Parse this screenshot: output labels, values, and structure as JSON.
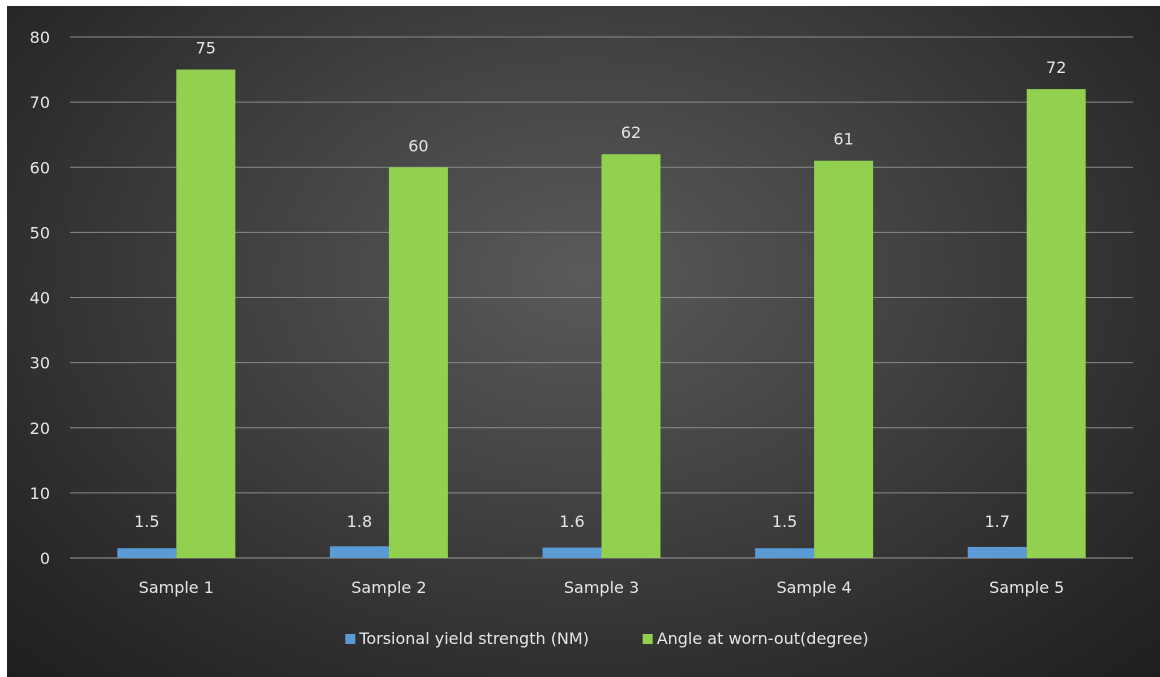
{
  "chart_data": {
    "type": "bar",
    "title": "",
    "xlabel": "",
    "ylabel": "",
    "categories": [
      "Sample 1",
      "Sample 2",
      "Sample 3",
      "Sample 4",
      "Sample 5"
    ],
    "series": [
      {
        "name": "Torsional yield strength (NM)",
        "values": [
          1.5,
          1.8,
          1.6,
          1.5,
          1.7
        ],
        "labels": [
          "1.5",
          "1.8",
          "1.6",
          "1.5",
          "1.7"
        ],
        "color": "#5b9bd5"
      },
      {
        "name": "Angle at worn-out(degree)",
        "values": [
          75,
          60,
          62,
          61,
          72
        ],
        "labels": [
          "75",
          "60",
          "62",
          "61",
          "72"
        ],
        "color": "#92d050"
      }
    ],
    "ylim": [
      0,
      80
    ],
    "yticks": [
      0,
      10,
      20,
      30,
      40,
      50,
      60,
      70,
      80
    ],
    "grid": true,
    "legend_position": "bottom",
    "background": "#3c3c3c"
  }
}
